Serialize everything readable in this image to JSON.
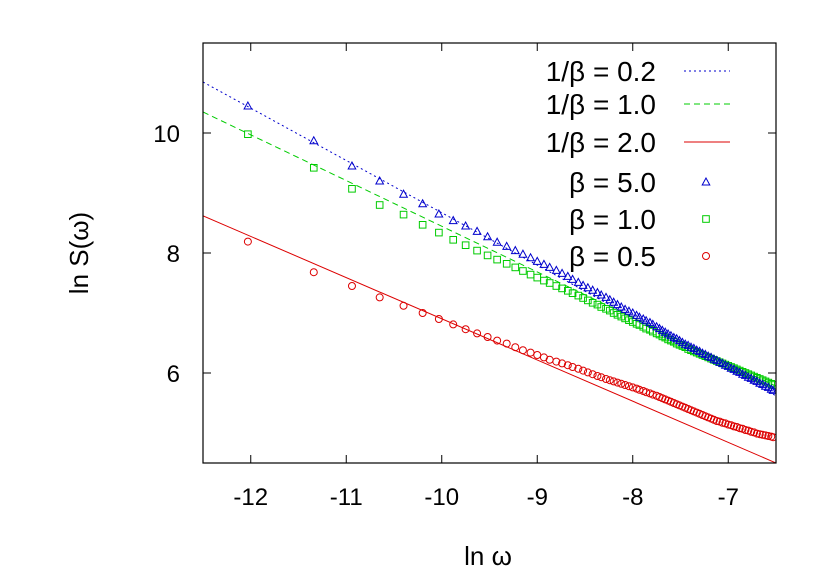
{
  "chart_data": {
    "type": "scatter",
    "xlabel": "ln ω",
    "ylabel": "ln S(ω)",
    "xlim": [
      -12.5,
      -6.5
    ],
    "ylim": [
      4.5,
      11.5
    ],
    "xticks": [
      -12,
      -11,
      -10,
      -9,
      -8,
      -7
    ],
    "yticks": [
      6,
      8,
      10
    ],
    "grid": false,
    "legend": "top-right",
    "lines": [
      {
        "name": "1/β = 0.2",
        "color": "#0000cc",
        "dash": "dotted",
        "x": [
          -12.5,
          -6.5
        ],
        "y": [
          10.85,
          5.62
        ]
      },
      {
        "name": "1/β = 1.0",
        "color": "#00cc00",
        "dash": "dashed",
        "x": [
          -12.5,
          -6.5
        ],
        "y": [
          10.35,
          5.78
        ]
      },
      {
        "name": "1/β = 2.0",
        "color": "#dd0000",
        "dash": "solid",
        "x": [
          -12.5,
          -6.5
        ],
        "y": [
          8.62,
          4.5
        ]
      }
    ],
    "series": [
      {
        "name": "β = 5.0",
        "marker": "triangle",
        "color": "#0000cc",
        "x": [
          -12.03,
          -11.34,
          -10.94,
          -10.65,
          -10.4,
          -10.2,
          -10.03,
          -9.88,
          -9.75,
          -9.63,
          -9.52,
          -9.42,
          -9.32,
          -9.23,
          -9.15,
          -9.07,
          -9.0,
          -8.93,
          -8.87,
          -8.8,
          -8.74,
          -8.68,
          -8.63,
          -8.57,
          -8.52,
          -8.47,
          -8.42,
          -8.37,
          -8.33,
          -8.28,
          -8.24,
          -8.2,
          -8.16,
          -8.12,
          -8.08,
          -8.04,
          -8.0,
          -7.96,
          -7.93,
          -7.89,
          -7.86,
          -7.82,
          -7.79,
          -7.75,
          -7.72,
          -7.69,
          -7.66,
          -7.63,
          -7.6,
          -7.57,
          -7.54,
          -7.51,
          -7.48,
          -7.45,
          -7.42,
          -7.39,
          -7.36,
          -7.33,
          -7.3,
          -7.27,
          -7.24,
          -7.21,
          -7.18,
          -7.15,
          -7.12,
          -7.09,
          -7.06,
          -7.03,
          -7.0,
          -6.97,
          -6.94,
          -6.91,
          -6.88,
          -6.85,
          -6.82,
          -6.79,
          -6.76,
          -6.73,
          -6.7,
          -6.67,
          -6.64,
          -6.61,
          -6.58,
          -6.55,
          -6.53
        ],
        "y": [
          10.45,
          9.87,
          9.45,
          9.2,
          8.98,
          8.82,
          8.65,
          8.54,
          8.45,
          8.36,
          8.27,
          8.18,
          8.11,
          8.04,
          7.98,
          7.92,
          7.86,
          7.81,
          7.76,
          7.71,
          7.66,
          7.61,
          7.56,
          7.51,
          7.46,
          7.42,
          7.38,
          7.34,
          7.3,
          7.26,
          7.22,
          7.18,
          7.14,
          7.1,
          7.06,
          7.03,
          7.0,
          6.96,
          6.93,
          6.9,
          6.87,
          6.84,
          6.81,
          6.77,
          6.74,
          6.71,
          6.68,
          6.65,
          6.62,
          6.59,
          6.57,
          6.54,
          6.51,
          6.48,
          6.46,
          6.43,
          6.41,
          6.38,
          6.36,
          6.33,
          6.31,
          6.28,
          6.26,
          6.23,
          6.21,
          6.18,
          6.16,
          6.13,
          6.11,
          6.08,
          6.06,
          6.03,
          6.01,
          5.98,
          5.96,
          5.93,
          5.91,
          5.88,
          5.86,
          5.83,
          5.81,
          5.78,
          5.76,
          5.73,
          5.71
        ]
      },
      {
        "name": "β = 1.0",
        "marker": "square",
        "color": "#00cc00",
        "x": [
          -12.03,
          -11.34,
          -10.94,
          -10.65,
          -10.4,
          -10.2,
          -10.03,
          -9.88,
          -9.75,
          -9.63,
          -9.52,
          -9.42,
          -9.32,
          -9.23,
          -9.15,
          -9.07,
          -9.0,
          -8.93,
          -8.87,
          -8.8,
          -8.74,
          -8.68,
          -8.63,
          -8.57,
          -8.52,
          -8.47,
          -8.42,
          -8.37,
          -8.33,
          -8.28,
          -8.24,
          -8.2,
          -8.16,
          -8.12,
          -8.08,
          -8.04,
          -8.0,
          -7.96,
          -7.93,
          -7.89,
          -7.86,
          -7.82,
          -7.79,
          -7.75,
          -7.72,
          -7.69,
          -7.66,
          -7.63,
          -7.6,
          -7.57,
          -7.54,
          -7.51,
          -7.48,
          -7.45,
          -7.42,
          -7.39,
          -7.36,
          -7.33,
          -7.3,
          -7.27,
          -7.24,
          -7.21,
          -7.18,
          -7.15,
          -7.12,
          -7.09,
          -7.06,
          -7.03,
          -7.0,
          -6.97,
          -6.94,
          -6.91,
          -6.88,
          -6.85,
          -6.82,
          -6.79,
          -6.76,
          -6.73,
          -6.7,
          -6.67,
          -6.64,
          -6.61,
          -6.58,
          -6.55,
          -6.53
        ],
        "y": [
          9.98,
          9.42,
          9.07,
          8.8,
          8.64,
          8.47,
          8.34,
          8.22,
          8.13,
          8.04,
          7.96,
          7.89,
          7.82,
          7.76,
          7.7,
          7.64,
          7.59,
          7.54,
          7.5,
          7.45,
          7.41,
          7.37,
          7.33,
          7.29,
          7.25,
          7.21,
          7.17,
          7.14,
          7.1,
          7.07,
          7.04,
          7.0,
          6.97,
          6.94,
          6.91,
          6.88,
          6.85,
          6.82,
          6.8,
          6.77,
          6.74,
          6.72,
          6.69,
          6.66,
          6.64,
          6.61,
          6.59,
          6.56,
          6.54,
          6.52,
          6.49,
          6.47,
          6.45,
          6.43,
          6.4,
          6.38,
          6.36,
          6.34,
          6.32,
          6.3,
          6.28,
          6.26,
          6.24,
          6.22,
          6.2,
          6.18,
          6.16,
          6.14,
          6.12,
          6.1,
          6.08,
          6.06,
          6.04,
          6.02,
          6.0,
          5.98,
          5.96,
          5.94,
          5.92,
          5.9,
          5.88,
          5.86,
          5.84,
          5.82,
          5.8
        ]
      },
      {
        "name": "β = 0.5",
        "marker": "circle",
        "color": "#dd0000",
        "x": [
          -12.03,
          -11.34,
          -10.94,
          -10.65,
          -10.4,
          -10.2,
          -10.03,
          -9.88,
          -9.75,
          -9.63,
          -9.52,
          -9.42,
          -9.32,
          -9.23,
          -9.15,
          -9.07,
          -9.0,
          -8.93,
          -8.87,
          -8.8,
          -8.74,
          -8.68,
          -8.63,
          -8.57,
          -8.52,
          -8.47,
          -8.42,
          -8.37,
          -8.33,
          -8.28,
          -8.24,
          -8.2,
          -8.16,
          -8.12,
          -8.08,
          -8.04,
          -8.0,
          -7.96,
          -7.93,
          -7.89,
          -7.86,
          -7.82,
          -7.79,
          -7.75,
          -7.72,
          -7.69,
          -7.66,
          -7.63,
          -7.6,
          -7.57,
          -7.54,
          -7.51,
          -7.48,
          -7.45,
          -7.42,
          -7.39,
          -7.36,
          -7.33,
          -7.3,
          -7.27,
          -7.24,
          -7.21,
          -7.18,
          -7.15,
          -7.12,
          -7.09,
          -7.06,
          -7.03,
          -7.0,
          -6.97,
          -6.94,
          -6.91,
          -6.88,
          -6.85,
          -6.82,
          -6.79,
          -6.76,
          -6.73,
          -6.7,
          -6.67,
          -6.64,
          -6.61,
          -6.58,
          -6.55,
          -6.53
        ],
        "y": [
          8.19,
          7.68,
          7.45,
          7.26,
          7.12,
          7.0,
          6.9,
          6.81,
          6.73,
          6.66,
          6.6,
          6.54,
          6.49,
          6.43,
          6.38,
          6.34,
          6.3,
          6.26,
          6.22,
          6.19,
          6.16,
          6.13,
          6.1,
          6.07,
          6.04,
          6.01,
          5.98,
          5.95,
          5.93,
          5.9,
          5.88,
          5.86,
          5.84,
          5.82,
          5.8,
          5.78,
          5.76,
          5.74,
          5.72,
          5.7,
          5.68,
          5.66,
          5.64,
          5.62,
          5.6,
          5.58,
          5.56,
          5.54,
          5.52,
          5.5,
          5.48,
          5.46,
          5.44,
          5.42,
          5.4,
          5.38,
          5.36,
          5.34,
          5.32,
          5.3,
          5.28,
          5.26,
          5.24,
          5.22,
          5.2,
          5.19,
          5.17,
          5.16,
          5.14,
          5.13,
          5.11,
          5.1,
          5.08,
          5.07,
          5.05,
          5.04,
          5.02,
          5.01,
          4.99,
          4.98,
          4.97,
          4.96,
          4.95,
          4.94,
          4.93
        ]
      }
    ],
    "legend_order": [
      "1/β = 0.2",
      "1/β = 1.0",
      "1/β = 2.0",
      "β = 5.0",
      "β = 1.0",
      "β = 0.5"
    ]
  }
}
